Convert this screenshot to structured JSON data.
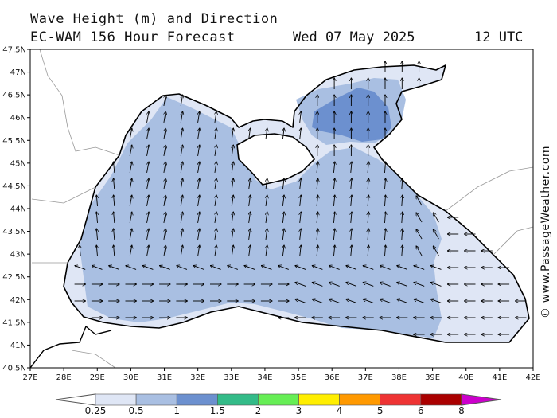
{
  "header": {
    "title": "Wave Height (m) and Direction",
    "model_line": "EC-WAM 156 Hour Forecast",
    "date": "Wed 07 May 2025",
    "time": "12 UTC"
  },
  "credit": "© www.PassageWeather.com",
  "axes": {
    "lon_labels": [
      "27E",
      "28E",
      "29E",
      "30E",
      "31E",
      "32E",
      "33E",
      "34E",
      "35E",
      "36E",
      "37E",
      "38E",
      "39E",
      "40E",
      "41E",
      "42E"
    ],
    "lat_labels": [
      "47.5N",
      "47N",
      "46.5N",
      "46N",
      "45.5N",
      "45N",
      "44.5N",
      "44N",
      "43.5N",
      "43N",
      "42.5N",
      "42N",
      "41.5N",
      "41N",
      "40.5N"
    ],
    "lon_range": [
      27,
      42
    ],
    "lat_range": [
      40.5,
      47.5
    ]
  },
  "legend": {
    "labels": [
      "0.25",
      "0.5",
      "1",
      "1.5",
      "2",
      "3",
      "4",
      "5",
      "6",
      "8"
    ],
    "colors": [
      "#ffffff",
      "#dfe6f5",
      "#a9bfe2",
      "#6c90cf",
      "#33bb88",
      "#66ee55",
      "#ffee00",
      "#ff9900",
      "#ee3333",
      "#aa0000",
      "#cc00cc"
    ]
  },
  "colors": {
    "land": "#ffffff",
    "coast": "#000000",
    "wave_025_05": "#dfe6f5",
    "wave_05_1": "#a9bfe2",
    "wave_1_15": "#6c90cf"
  },
  "map_features": {
    "arrows_note": "",
    "direction_field": "wave direction arrows"
  }
}
